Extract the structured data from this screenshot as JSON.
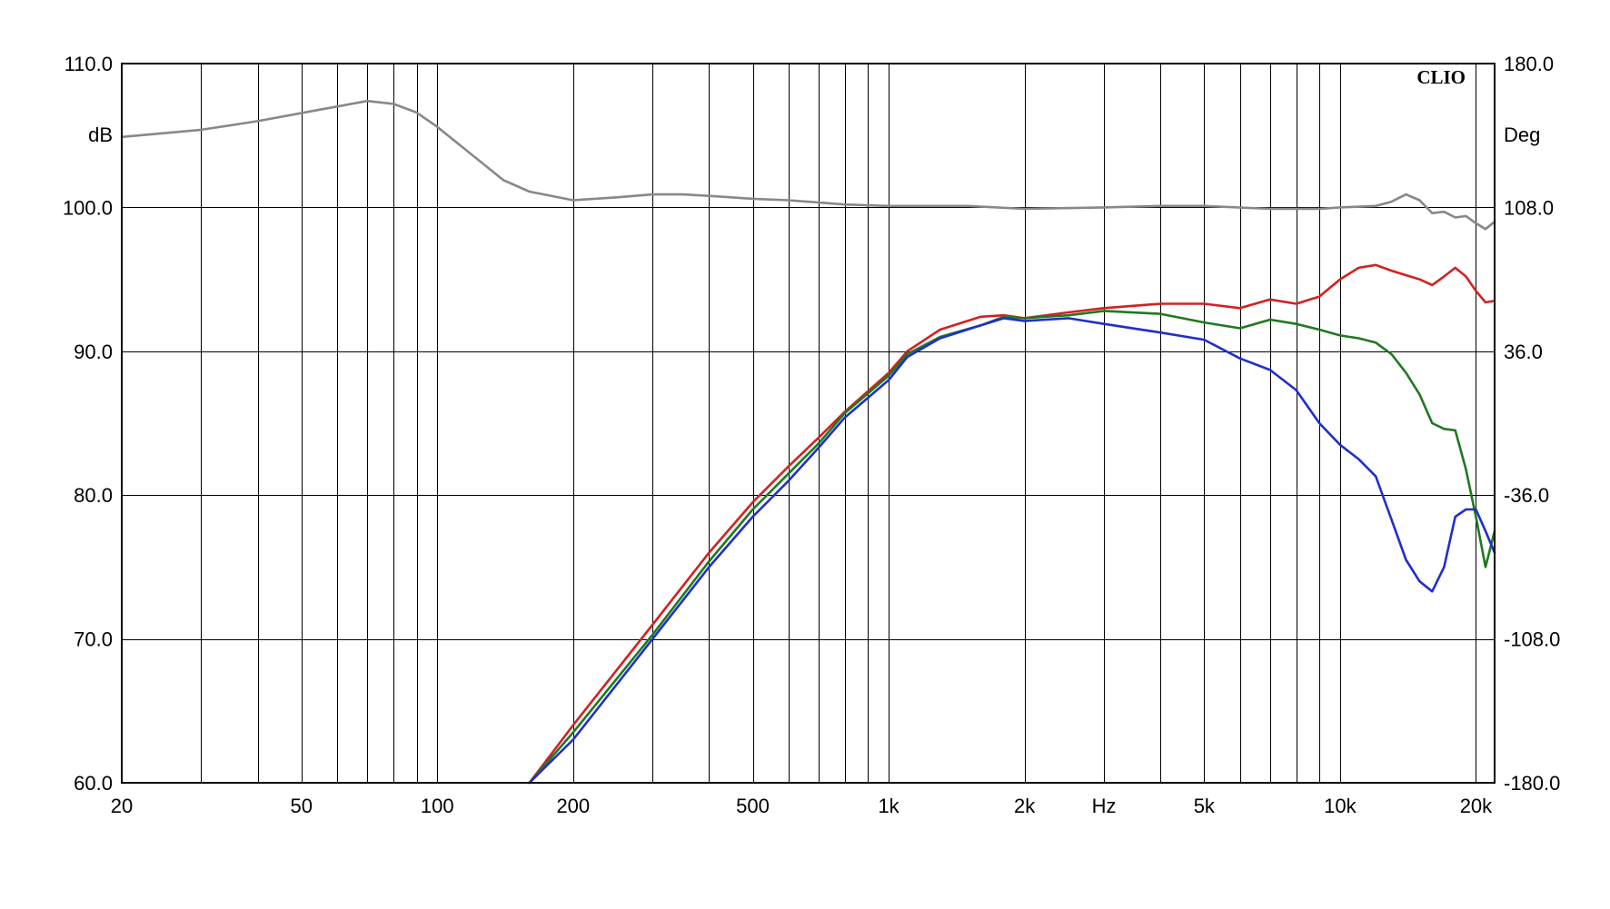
{
  "chart_data": {
    "type": "line",
    "brand": "CLIO",
    "xlabel": "Hz",
    "ylabel_left": "dB",
    "ylabel_right": "Deg",
    "x_scale": "log",
    "xlim": [
      20,
      22000
    ],
    "ylim_left": [
      60,
      110
    ],
    "ylim_right": [
      -180,
      180
    ],
    "grid": true,
    "x_ticks": [
      {
        "value": 20,
        "label": "20"
      },
      {
        "value": 50,
        "label": "50"
      },
      {
        "value": 100,
        "label": "100"
      },
      {
        "value": 200,
        "label": "200"
      },
      {
        "value": 500,
        "label": "500"
      },
      {
        "value": 1000,
        "label": "1k"
      },
      {
        "value": 2000,
        "label": "2k"
      },
      {
        "value": 5000,
        "label": "5k"
      },
      {
        "value": 10000,
        "label": "10k"
      },
      {
        "value": 20000,
        "label": "20k"
      }
    ],
    "x_unit_label_value": 3000,
    "y_ticks_left": [
      {
        "value": 110,
        "label": "110.0"
      },
      {
        "value": 100,
        "label": "100.0"
      },
      {
        "value": 90,
        "label": "90.0"
      },
      {
        "value": 80,
        "label": "80.0"
      },
      {
        "value": 70,
        "label": "70.0"
      },
      {
        "value": 60,
        "label": "60.0"
      }
    ],
    "y_ticks_right": [
      {
        "value": 180,
        "label": "180.0"
      },
      {
        "value": 108,
        "label": "108.0"
      },
      {
        "value": 36,
        "label": "36.0"
      },
      {
        "value": -36,
        "label": "-36.0"
      },
      {
        "value": -108,
        "label": "-108.0"
      },
      {
        "value": -180,
        "label": "-180.0"
      }
    ],
    "series": [
      {
        "color": "#888888",
        "points": [
          [
            20,
            104.9
          ],
          [
            30,
            105.4
          ],
          [
            40,
            106.0
          ],
          [
            55,
            106.8
          ],
          [
            70,
            107.4
          ],
          [
            80,
            107.2
          ],
          [
            90,
            106.6
          ],
          [
            100,
            105.6
          ],
          [
            120,
            103.6
          ],
          [
            140,
            101.9
          ],
          [
            160,
            101.1
          ],
          [
            200,
            100.5
          ],
          [
            250,
            100.7
          ],
          [
            300,
            100.9
          ],
          [
            350,
            100.9
          ],
          [
            400,
            100.8
          ],
          [
            500,
            100.6
          ],
          [
            600,
            100.5
          ],
          [
            800,
            100.2
          ],
          [
            1000,
            100.1
          ],
          [
            1500,
            100.1
          ],
          [
            2000,
            99.9
          ],
          [
            3000,
            100.0
          ],
          [
            4000,
            100.1
          ],
          [
            5000,
            100.1
          ],
          [
            7000,
            99.9
          ],
          [
            9000,
            99.9
          ],
          [
            10000,
            100.0
          ],
          [
            12000,
            100.1
          ],
          [
            13000,
            100.4
          ],
          [
            14000,
            100.9
          ],
          [
            15000,
            100.5
          ],
          [
            16000,
            99.6
          ],
          [
            17000,
            99.7
          ],
          [
            18000,
            99.3
          ],
          [
            19000,
            99.4
          ],
          [
            20000,
            98.9
          ],
          [
            21000,
            98.5
          ],
          [
            22000,
            99.0
          ]
        ]
      },
      {
        "color": "#d42020",
        "points": [
          [
            160,
            60.0
          ],
          [
            200,
            64.0
          ],
          [
            300,
            71.0
          ],
          [
            400,
            76.0
          ],
          [
            500,
            79.5
          ],
          [
            600,
            82.0
          ],
          [
            700,
            84.0
          ],
          [
            800,
            85.8
          ],
          [
            1000,
            88.5
          ],
          [
            1100,
            90.0
          ],
          [
            1300,
            91.5
          ],
          [
            1600,
            92.4
          ],
          [
            1800,
            92.5
          ],
          [
            2000,
            92.3
          ],
          [
            2500,
            92.7
          ],
          [
            3000,
            93.0
          ],
          [
            4000,
            93.3
          ],
          [
            5000,
            93.3
          ],
          [
            6000,
            93.0
          ],
          [
            7000,
            93.6
          ],
          [
            8000,
            93.3
          ],
          [
            9000,
            93.8
          ],
          [
            10000,
            95.0
          ],
          [
            11000,
            95.8
          ],
          [
            12000,
            96.0
          ],
          [
            13000,
            95.6
          ],
          [
            15000,
            95.0
          ],
          [
            16000,
            94.6
          ],
          [
            17000,
            95.2
          ],
          [
            18000,
            95.8
          ],
          [
            19000,
            95.2
          ],
          [
            20000,
            94.2
          ],
          [
            21000,
            93.4
          ],
          [
            22000,
            93.5
          ]
        ]
      },
      {
        "color": "#1f7a1f",
        "points": [
          [
            160,
            60.0
          ],
          [
            200,
            63.5
          ],
          [
            300,
            70.3
          ],
          [
            400,
            75.4
          ],
          [
            500,
            79.0
          ],
          [
            600,
            81.5
          ],
          [
            700,
            83.6
          ],
          [
            800,
            85.7
          ],
          [
            1000,
            88.3
          ],
          [
            1100,
            89.8
          ],
          [
            1300,
            91.0
          ],
          [
            1600,
            91.8
          ],
          [
            1800,
            92.4
          ],
          [
            2000,
            92.3
          ],
          [
            2500,
            92.5
          ],
          [
            3000,
            92.8
          ],
          [
            4000,
            92.6
          ],
          [
            5000,
            92.0
          ],
          [
            6000,
            91.6
          ],
          [
            7000,
            92.2
          ],
          [
            8000,
            91.9
          ],
          [
            9000,
            91.5
          ],
          [
            10000,
            91.1
          ],
          [
            11000,
            90.9
          ],
          [
            12000,
            90.6
          ],
          [
            13000,
            89.8
          ],
          [
            14000,
            88.5
          ],
          [
            15000,
            87.0
          ],
          [
            16000,
            85.0
          ],
          [
            17000,
            84.6
          ],
          [
            18000,
            84.5
          ],
          [
            19000,
            81.8
          ],
          [
            20000,
            78.5
          ],
          [
            21000,
            75.0
          ],
          [
            22000,
            77.5
          ]
        ]
      },
      {
        "color": "#1f2fcc",
        "points": [
          [
            160,
            60.0
          ],
          [
            200,
            63.0
          ],
          [
            300,
            70.0
          ],
          [
            400,
            75.0
          ],
          [
            500,
            78.5
          ],
          [
            600,
            81.0
          ],
          [
            700,
            83.3
          ],
          [
            800,
            85.4
          ],
          [
            1000,
            88.0
          ],
          [
            1100,
            89.6
          ],
          [
            1300,
            90.9
          ],
          [
            1600,
            91.8
          ],
          [
            1800,
            92.3
          ],
          [
            2000,
            92.1
          ],
          [
            2500,
            92.3
          ],
          [
            3000,
            91.9
          ],
          [
            4000,
            91.3
          ],
          [
            5000,
            90.8
          ],
          [
            6000,
            89.5
          ],
          [
            7000,
            88.7
          ],
          [
            8000,
            87.3
          ],
          [
            9000,
            85.0
          ],
          [
            10000,
            83.5
          ],
          [
            11000,
            82.5
          ],
          [
            12000,
            81.3
          ],
          [
            13000,
            78.3
          ],
          [
            14000,
            75.5
          ],
          [
            15000,
            74.0
          ],
          [
            16000,
            73.3
          ],
          [
            17000,
            75.0
          ],
          [
            18000,
            78.5
          ],
          [
            19000,
            79.0
          ],
          [
            20000,
            79.0
          ],
          [
            21000,
            77.5
          ],
          [
            22000,
            76.0
          ]
        ]
      }
    ]
  }
}
